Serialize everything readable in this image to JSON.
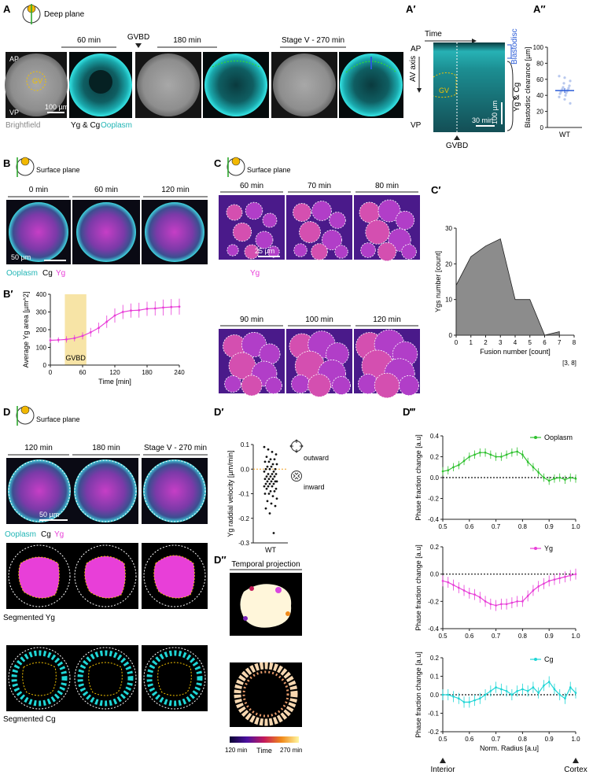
{
  "panels": {
    "A": "A",
    "A1": "A′",
    "A2": "A″",
    "B": "B",
    "B1": "B′",
    "C": "C",
    "C1": "C′",
    "D": "D",
    "D1": "D′",
    "D2": "D″",
    "D3": "D‴"
  },
  "planes": {
    "deep": "Deep plane",
    "surface": "Surface plane"
  },
  "a": {
    "times": [
      "60 min",
      "180 min",
      "Stage V - 270 min"
    ],
    "gvbd": "GVBD",
    "ap": "AP",
    "vp": "VP",
    "gv": "GV",
    "scale": "100 µm",
    "legend_bf": "Brightfield",
    "legend_ygcg": "Yg & Cg",
    "legend_oo": "Ooplasm"
  },
  "a1": {
    "time": "Time",
    "ap": "AP",
    "vp": "VP",
    "axis": "AV axis",
    "gv": "GV",
    "scale_x": "30 min",
    "scale_y": "100 µm",
    "gvbd": "GVBD",
    "blastodisc": "Blastodisc",
    "ygcg": "Yg & Cg"
  },
  "b": {
    "times": [
      "0 min",
      "60 min",
      "120 min"
    ],
    "scale": "50 µm",
    "leg_oo": "Ooplasm",
    "leg_cg": "Cg",
    "leg_yg": "Yg"
  },
  "c": {
    "times": [
      "60 min",
      "70 min",
      "80 min",
      "90 min",
      "100 min",
      "120 min"
    ],
    "scale": "25 µm",
    "leg_yg": "Yg"
  },
  "d": {
    "times": [
      "120 min",
      "180 min",
      "Stage V - 270 min"
    ],
    "scale": "50 µm",
    "leg_oo": "Ooplasm",
    "leg_cg": "Cg",
    "leg_yg": "Yg",
    "seg_yg": "Segmented Yg",
    "seg_cg": "Segmented Cg"
  },
  "d1": {
    "outward": "outward",
    "inward": "inward"
  },
  "d2": {
    "title": "Temporal projection",
    "cb_min": "120 min",
    "cb_mid": "Time",
    "cb_max": "270 min"
  },
  "d3": {
    "interior": "Interior",
    "cortex": "Cortex"
  },
  "colors": {
    "cyan": "#1fd6d6",
    "magenta": "#e83fd8",
    "green": "#2fc12f",
    "yellow": "#f2c200",
    "blue": "#2a5bd7",
    "ooplasm_txt": "#21b5b5"
  },
  "chart_data": [
    {
      "id": "A2",
      "type": "scatter",
      "ylabel": "Blastodisc clearance [µm]",
      "categories": [
        "WT"
      ],
      "ylim": [
        0,
        100
      ],
      "yticks": [
        0,
        20,
        40,
        60,
        80,
        100
      ],
      "points": [
        64,
        62,
        58,
        55,
        52,
        50,
        49,
        48,
        47,
        46,
        45,
        44,
        43,
        42,
        40,
        38,
        35,
        30
      ],
      "mean": 46,
      "sem": 3
    },
    {
      "id": "B1",
      "type": "line",
      "ylabel": "Average Yg area [µm^2]",
      "xlabel": "Time [min]",
      "xlim": [
        0,
        240
      ],
      "ylim": [
        0,
        400
      ],
      "xticks": [
        0,
        60,
        120,
        180,
        240
      ],
      "yticks": [
        0,
        100,
        200,
        300,
        400
      ],
      "annotation": "GVBD",
      "gvbd_range": [
        27,
        67
      ],
      "x": [
        0,
        15,
        30,
        45,
        60,
        75,
        90,
        105,
        120,
        135,
        150,
        165,
        180,
        195,
        210,
        225,
        240
      ],
      "y": [
        140,
        142,
        145,
        152,
        165,
        185,
        210,
        245,
        280,
        300,
        308,
        310,
        318,
        320,
        325,
        328,
        330
      ],
      "err": [
        15,
        15,
        18,
        18,
        20,
        25,
        30,
        35,
        40,
        40,
        40,
        42,
        40,
        40,
        45,
        45,
        45
      ]
    },
    {
      "id": "C1",
      "type": "area",
      "ylabel": "Ygs number [count]",
      "xlabel": "Fusion number [count]",
      "xlim": [
        0,
        8
      ],
      "ylim": [
        0,
        30
      ],
      "xticks": [
        "0",
        "1",
        "2",
        "3",
        "4",
        "5",
        "6",
        "7",
        "8"
      ],
      "yticks": [
        0,
        10,
        20,
        30
      ],
      "extra_tick": "[3, 8]",
      "x": [
        0,
        1,
        2,
        3,
        4,
        5,
        6,
        7
      ],
      "y": [
        14,
        22,
        25,
        27,
        10,
        10,
        0,
        1
      ]
    },
    {
      "id": "D1",
      "type": "scatter",
      "ylabel": "Yg raddial velocity [µm/min]",
      "categories": [
        "WT"
      ],
      "ylim": [
        -0.3,
        0.1
      ],
      "yticks": [
        0.1,
        0.0,
        -0.1,
        -0.2,
        -0.3
      ],
      "points": [
        0.09,
        0.08,
        0.07,
        0.06,
        0.05,
        0.04,
        0.04,
        0.03,
        0.03,
        0.02,
        0.02,
        0.01,
        0.01,
        0.0,
        0.0,
        0.0,
        -0.01,
        -0.01,
        -0.02,
        -0.02,
        -0.02,
        -0.03,
        -0.03,
        -0.03,
        -0.04,
        -0.04,
        -0.04,
        -0.05,
        -0.05,
        -0.05,
        -0.05,
        -0.06,
        -0.06,
        -0.06,
        -0.07,
        -0.07,
        -0.07,
        -0.08,
        -0.08,
        -0.09,
        -0.09,
        -0.1,
        -0.1,
        -0.11,
        -0.12,
        -0.13,
        -0.14,
        -0.15,
        -0.16,
        -0.18,
        -0.26
      ],
      "mean": -0.05
    },
    {
      "id": "D3a",
      "type": "line",
      "series_name": "Ooplasm",
      "ylabel": "Phase fraction change [a.u]",
      "xlim": [
        0.5,
        1.0
      ],
      "ylim": [
        -0.4,
        0.4
      ],
      "xticks": [
        "0.5",
        "0.6",
        "0.7",
        "0.8",
        "0.9",
        "1.0"
      ],
      "yticks": [
        "-0.4",
        "-0.2",
        "0.0",
        "0.2",
        "0.4"
      ],
      "x": [
        0.5,
        0.52,
        0.54,
        0.56,
        0.58,
        0.6,
        0.62,
        0.64,
        0.66,
        0.68,
        0.7,
        0.72,
        0.74,
        0.76,
        0.78,
        0.8,
        0.82,
        0.84,
        0.86,
        0.88,
        0.9,
        0.92,
        0.94,
        0.96,
        0.98,
        1.0
      ],
      "y": [
        0.06,
        0.07,
        0.1,
        0.12,
        0.16,
        0.2,
        0.22,
        0.24,
        0.24,
        0.22,
        0.2,
        0.2,
        0.22,
        0.24,
        0.25,
        0.22,
        0.15,
        0.1,
        0.05,
        0.0,
        -0.03,
        -0.01,
        0.0,
        -0.02,
        0.0,
        -0.01
      ],
      "err": 0.04
    },
    {
      "id": "D3b",
      "type": "line",
      "series_name": "Yg",
      "ylabel": "Phase fraction change [a.u]",
      "xlim": [
        0.5,
        1.0
      ],
      "ylim": [
        -0.4,
        0.2
      ],
      "xticks": [
        "0.5",
        "0.6",
        "0.7",
        "0.8",
        "0.9",
        "1.0"
      ],
      "yticks": [
        "-0.4",
        "-0.2",
        "0.0",
        "0.2"
      ],
      "x": [
        0.5,
        0.52,
        0.54,
        0.56,
        0.58,
        0.6,
        0.62,
        0.64,
        0.66,
        0.68,
        0.7,
        0.72,
        0.74,
        0.76,
        0.78,
        0.8,
        0.82,
        0.84,
        0.86,
        0.88,
        0.9,
        0.92,
        0.94,
        0.96,
        0.98,
        1.0
      ],
      "y": [
        -0.05,
        -0.06,
        -0.08,
        -0.1,
        -0.12,
        -0.14,
        -0.15,
        -0.17,
        -0.2,
        -0.22,
        -0.23,
        -0.22,
        -0.22,
        -0.21,
        -0.2,
        -0.2,
        -0.16,
        -0.12,
        -0.09,
        -0.07,
        -0.05,
        -0.04,
        -0.03,
        -0.02,
        -0.01,
        0.0
      ],
      "err": 0.04
    },
    {
      "id": "D3c",
      "type": "line",
      "series_name": "Cg",
      "ylabel": "Phase fraction change [a.u]",
      "xlabel": "Norm. Radius [a.u]",
      "xlim": [
        0.5,
        1.0
      ],
      "ylim": [
        -0.2,
        0.2
      ],
      "xticks": [
        "0.5",
        "0.6",
        "0.7",
        "0.8",
        "0.9",
        "1.0"
      ],
      "yticks": [
        "-0.2",
        "-0.1",
        "0.0",
        "0.1",
        "0.2"
      ],
      "x": [
        0.5,
        0.52,
        0.54,
        0.56,
        0.58,
        0.6,
        0.62,
        0.64,
        0.66,
        0.68,
        0.7,
        0.72,
        0.74,
        0.76,
        0.78,
        0.8,
        0.82,
        0.84,
        0.86,
        0.88,
        0.9,
        0.92,
        0.94,
        0.96,
        0.98,
        1.0
      ],
      "y": [
        0.0,
        0.0,
        -0.01,
        -0.02,
        -0.04,
        -0.04,
        -0.03,
        -0.02,
        0.0,
        0.02,
        0.04,
        0.03,
        0.02,
        0.0,
        0.02,
        0.03,
        0.02,
        0.04,
        0.01,
        0.05,
        0.07,
        0.03,
        0.0,
        -0.02,
        0.04,
        0.01
      ],
      "err": 0.03
    }
  ]
}
